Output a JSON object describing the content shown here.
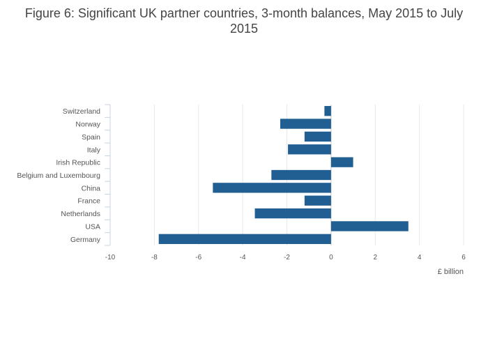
{
  "chart_data": {
    "type": "bar",
    "orientation": "horizontal",
    "title": "Figure 6: Significant UK partner countries, 3-month balances, May 2015 to July 2015",
    "xlabel": "£ billion",
    "ylabel": "",
    "categories": [
      "Switzerland",
      "Norway",
      "Spain",
      "Italy",
      "Irish Republic",
      "Belgium and Luxembourg",
      "China",
      "France",
      "Netherlands",
      "USA",
      "Germany"
    ],
    "values": [
      -0.3,
      -2.3,
      -1.2,
      -1.95,
      1.0,
      -2.7,
      -5.35,
      -1.2,
      -3.45,
      3.5,
      -7.8
    ],
    "xlim": [
      -10,
      6
    ],
    "xticks": [
      -10,
      -8,
      -6,
      -4,
      -2,
      0,
      2,
      4,
      6
    ],
    "grid": true,
    "bar_color": "#215f93"
  }
}
